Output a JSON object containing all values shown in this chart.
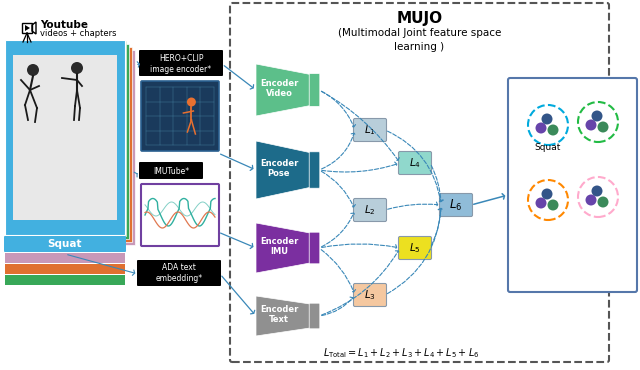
{
  "title": "MUJO",
  "subtitle": "(Multimodal Joint feature space\nlearning )",
  "youtube_label_1": "Youtube",
  "youtube_label_2": "videos + chapters",
  "squat_label": "Squat",
  "hero_label": "HERO+CLIP\nimage encoder*",
  "imu_label": "IMUTube*",
  "ada_label": "ADA text\nembedding*",
  "video_encoder_label": "Video\nEncoder",
  "pose_encoder_label": "Pose\nEncoder",
  "imu_encoder_label": "IMU\nEncoder",
  "text_encoder_label": "Text\nEncoder",
  "video_encoder_color": "#5cbf8a",
  "pose_encoder_color": "#1d6b8a",
  "imu_encoder_color": "#7b2fa0",
  "text_encoder_color": "#909090",
  "bg_color": "#ffffff",
  "dashed_box_color": "#555555",
  "arrow_color": "#3a88b8",
  "l1_color": "#b8ceda",
  "l2_color": "#b8ceda",
  "l3_color": "#f5c8a0",
  "l4_color": "#90d8cc",
  "l5_color": "#ece020",
  "l6_color": "#90bcd8",
  "circle_colors_outer": [
    "#00aadd",
    "#22bb44",
    "#ff8800",
    "#ffaacc"
  ],
  "dot_c1": "#6644aa",
  "dot_c2": "#3b8a5a",
  "dot_c3": "#335588",
  "dot_c4": "#888888",
  "squat_bar_color": "#42b0e0",
  "frame_colors": [
    "#c898b8",
    "#e07030",
    "#38a858"
  ],
  "formula": "$\\mathit{L}_{\\mathrm{Total}} = L_1 + L_2 + L_3 + L_4 + L_5 + L_6$"
}
